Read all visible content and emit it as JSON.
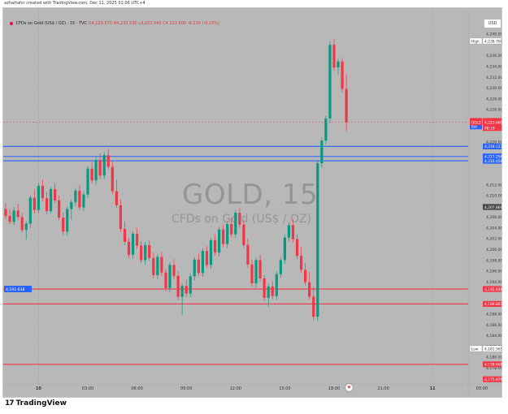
{
  "header": {
    "created_by": "azhartahir created with TradingView.com, Dec 11, 2025 01:06 UTC+4"
  },
  "symbol_bar": {
    "name": "CFDs on Gold (US$ / OZ) · 15 · TVC",
    "open": "O4,229.575",
    "high": "H4,232.530",
    "low": "L4,222.045",
    "close": "C4,223.600",
    "change": "-6.230 (-0.15%)"
  },
  "currency_button": "USD",
  "watermark": {
    "title": "GOLD, 15",
    "subtitle": "CFDs on Gold (US$ / OZ)"
  },
  "footer": {
    "logo_text": "TradingView"
  },
  "chart_data": {
    "type": "candlestick",
    "symbol": "GOLD",
    "interval": "15",
    "price_axis": {
      "min": 4175.0,
      "max": 4243.0,
      "ticks": [
        "4,242.000",
        "4,240.000",
        "4,236.000",
        "4,234.000",
        "4,232.000",
        "4,230.000",
        "4,228.000",
        "4,226.000",
        "4,220.000",
        "4,212.000",
        "4,210.000",
        "4,206.000",
        "4,204.000",
        "4,202.000",
        "4,200.000",
        "4,198.000",
        "4,196.000",
        "4,194.000",
        "4,188.000",
        "4,186.000",
        "4,184.000",
        "4,182.000",
        "4,180.000",
        "4,178.000"
      ]
    },
    "time_axis": {
      "labels": [
        "10",
        "03:00",
        "06:00",
        "09:00",
        "12:00",
        "15:00",
        "18:00",
        "21:00",
        "11",
        "03:00",
        "06:00",
        "09:00",
        "12:00"
      ],
      "first_label_bar": 8,
      "bars_per_label": 12
    },
    "price_labels": [
      {
        "name": "High",
        "label": "High",
        "value": "4,238.700",
        "kind": "high"
      },
      {
        "name": "Ask",
        "label": "Ask",
        "value": "4,223.850",
        "kind": "ask"
      },
      {
        "name": "Bid",
        "label": "Bid",
        "value": "4,222.850",
        "kind": "bid"
      },
      {
        "name": "GOLD",
        "label": "GOLD",
        "value": "4,223.600",
        "kind": "last"
      },
      {
        "name": "Countdown",
        "label": "",
        "value": "08:19",
        "kind": "countdown"
      },
      {
        "name": "Level 4219",
        "label": "",
        "value": "4,219.123",
        "kind": "blue"
      },
      {
        "name": "Level 4217",
        "label": "",
        "value": "4,217.256",
        "kind": "blue"
      },
      {
        "name": "Level 4216",
        "label": "",
        "value": "4,216.456",
        "kind": "blue"
      },
      {
        "name": "Level 4207",
        "label": "",
        "value": "4,207.869",
        "kind": "grey"
      },
      {
        "name": "Level 4192",
        "label": "",
        "value": "4,192.638",
        "kind": "red"
      },
      {
        "name": "Level 4189",
        "label": "",
        "value": "4,189.867",
        "kind": "red"
      },
      {
        "name": "Low",
        "label": "Low",
        "value": "4,181.565",
        "kind": "low"
      },
      {
        "name": "Level 4178",
        "label": "",
        "value": "4,178.648",
        "kind": "red"
      },
      {
        "name": "Level 4175",
        "label": "",
        "value": "4,175.876",
        "kind": "red"
      }
    ],
    "horizontal_lines": [
      {
        "price": 4219.123,
        "color": "#2962ff"
      },
      {
        "price": 4217.256,
        "color": "#2962ff"
      },
      {
        "price": 4216.456,
        "color": "#2962ff"
      },
      {
        "price": 4192.638,
        "color": "#f23645"
      },
      {
        "price": 4189.867,
        "color": "#f23645"
      },
      {
        "price": 4178.648,
        "color": "#f23645"
      }
    ],
    "left_label": {
      "value": "4,192.638",
      "color": "#2962ff",
      "price": 4192.638
    },
    "last_price": 4223.6,
    "colors": {
      "up": "#089981",
      "down": "#f23645",
      "background": "#b8b8b8"
    },
    "candles": [
      [
        4207.5,
        4208.6,
        4205.6,
        4206.2
      ],
      [
        4206.2,
        4207.5,
        4204.7,
        4205.1
      ],
      [
        4205.1,
        4207.9,
        4204.5,
        4207.2
      ],
      [
        4207.2,
        4208.5,
        4205.5,
        4206.0
      ],
      [
        4206.0,
        4206.7,
        4203.1,
        4203.6
      ],
      [
        4203.6,
        4205.2,
        4201.8,
        4204.8
      ],
      [
        4204.8,
        4210.0,
        4204.0,
        4209.6
      ],
      [
        4209.6,
        4211.2,
        4206.7,
        4207.3
      ],
      [
        4207.3,
        4212.4,
        4206.7,
        4211.8
      ],
      [
        4211.8,
        4213.0,
        4208.9,
        4209.5
      ],
      [
        4209.5,
        4210.6,
        4206.5,
        4207.1
      ],
      [
        4207.1,
        4211.6,
        4206.6,
        4211.2
      ],
      [
        4211.2,
        4212.3,
        4208.5,
        4209.1
      ],
      [
        4209.1,
        4210.0,
        4205.4,
        4205.9
      ],
      [
        4205.9,
        4206.9,
        4202.7,
        4203.3
      ],
      [
        4203.3,
        4207.9,
        4202.5,
        4207.5
      ],
      [
        4207.5,
        4209.3,
        4205.5,
        4208.8
      ],
      [
        4208.8,
        4211.4,
        4208.0,
        4210.9
      ],
      [
        4210.9,
        4211.9,
        4207.3,
        4207.8
      ],
      [
        4207.8,
        4210.8,
        4207.1,
        4210.2
      ],
      [
        4210.2,
        4215.5,
        4209.5,
        4215.0
      ],
      [
        4215.0,
        4216.2,
        4212.2,
        4212.8
      ],
      [
        4212.8,
        4217.2,
        4212.0,
        4216.6
      ],
      [
        4216.6,
        4217.8,
        4213.1,
        4213.7
      ],
      [
        4213.7,
        4218.0,
        4213.1,
        4217.5
      ],
      [
        4217.5,
        4218.7,
        4214.8,
        4215.3
      ],
      [
        4215.3,
        4216.3,
        4210.2,
        4210.8
      ],
      [
        4210.8,
        4213.0,
        4207.7,
        4208.2
      ],
      [
        4208.2,
        4209.3,
        4203.2,
        4203.8
      ],
      [
        4203.8,
        4205.2,
        4200.8,
        4201.4
      ],
      [
        4201.4,
        4202.2,
        4198.4,
        4199.0
      ],
      [
        4199.0,
        4203.4,
        4198.2,
        4202.9
      ],
      [
        4202.9,
        4204.0,
        4200.1,
        4200.7
      ],
      [
        4200.7,
        4201.5,
        4197.4,
        4198.0
      ],
      [
        4198.0,
        4201.4,
        4197.2,
        4200.8
      ],
      [
        4200.8,
        4201.7,
        4197.8,
        4198.4
      ],
      [
        4198.4,
        4199.4,
        4194.6,
        4195.2
      ],
      [
        4195.2,
        4199.1,
        4194.5,
        4198.6
      ],
      [
        4198.6,
        4199.5,
        4195.1,
        4195.7
      ],
      [
        4195.7,
        4196.4,
        4192.2,
        4192.8
      ],
      [
        4192.8,
        4197.6,
        4192.0,
        4197.1
      ],
      [
        4197.1,
        4198.2,
        4194.5,
        4195.1
      ],
      [
        4195.1,
        4196.0,
        4190.6,
        4191.2
      ],
      [
        4191.2,
        4193.7,
        4187.8,
        4193.2
      ],
      [
        4193.2,
        4194.4,
        4191.2,
        4191.8
      ],
      [
        4191.8,
        4195.5,
        4191.1,
        4195.0
      ],
      [
        4195.0,
        4198.6,
        4194.3,
        4198.1
      ],
      [
        4198.1,
        4199.2,
        4195.0,
        4195.6
      ],
      [
        4195.6,
        4200.2,
        4194.9,
        4199.7
      ],
      [
        4199.7,
        4200.6,
        4196.5,
        4197.1
      ],
      [
        4197.1,
        4202.2,
        4196.4,
        4201.7
      ],
      [
        4201.7,
        4202.8,
        4198.8,
        4199.4
      ],
      [
        4199.4,
        4204.2,
        4198.7,
        4203.7
      ],
      [
        4203.7,
        4204.6,
        4200.4,
        4201.0
      ],
      [
        4201.0,
        4205.2,
        4200.3,
        4204.7
      ],
      [
        4204.7,
        4205.8,
        4202.2,
        4202.8
      ],
      [
        4202.8,
        4207.3,
        4202.1,
        4206.8
      ],
      [
        4206.8,
        4207.7,
        4204.0,
        4204.6
      ],
      [
        4204.6,
        4205.5,
        4200.2,
        4200.8
      ],
      [
        4200.8,
        4202.0,
        4196.6,
        4197.2
      ],
      [
        4197.2,
        4198.1,
        4193.1,
        4193.7
      ],
      [
        4193.7,
        4198.5,
        4192.9,
        4198.0
      ],
      [
        4198.0,
        4199.0,
        4194.0,
        4194.6
      ],
      [
        4194.6,
        4195.2,
        4190.4,
        4191.0
      ],
      [
        4191.0,
        4193.7,
        4189.3,
        4193.1
      ],
      [
        4193.1,
        4194.1,
        4190.7,
        4191.3
      ],
      [
        4191.3,
        4195.9,
        4190.6,
        4195.4
      ],
      [
        4195.4,
        4198.5,
        4194.7,
        4198.0
      ],
      [
        4198.0,
        4202.7,
        4197.3,
        4202.2
      ],
      [
        4202.2,
        4205.0,
        4201.5,
        4204.5
      ],
      [
        4204.5,
        4205.6,
        4201.3,
        4201.9
      ],
      [
        4201.9,
        4202.8,
        4198.2,
        4198.8
      ],
      [
        4198.8,
        4200.5,
        4195.7,
        4196.2
      ],
      [
        4196.2,
        4197.5,
        4193.3,
        4193.9
      ],
      [
        4193.9,
        4195.8,
        4190.7,
        4191.2
      ],
      [
        4191.2,
        4193.1,
        4186.8,
        4187.5
      ],
      [
        4187.5,
        4216.4,
        4186.7,
        4216.0
      ],
      [
        4216.0,
        4220.8,
        4215.2,
        4220.2
      ],
      [
        4220.2,
        4224.8,
        4219.5,
        4224.3
      ],
      [
        4224.3,
        4238.7,
        4223.5,
        4238.0
      ],
      [
        4238.0,
        4239.1,
        4233.2,
        4233.8
      ],
      [
        4233.8,
        4235.4,
        4232.4,
        4234.9
      ],
      [
        4234.9,
        4235.6,
        4229.2,
        4229.8
      ],
      [
        4229.8,
        4232.5,
        4222.0,
        4223.6
      ]
    ]
  }
}
